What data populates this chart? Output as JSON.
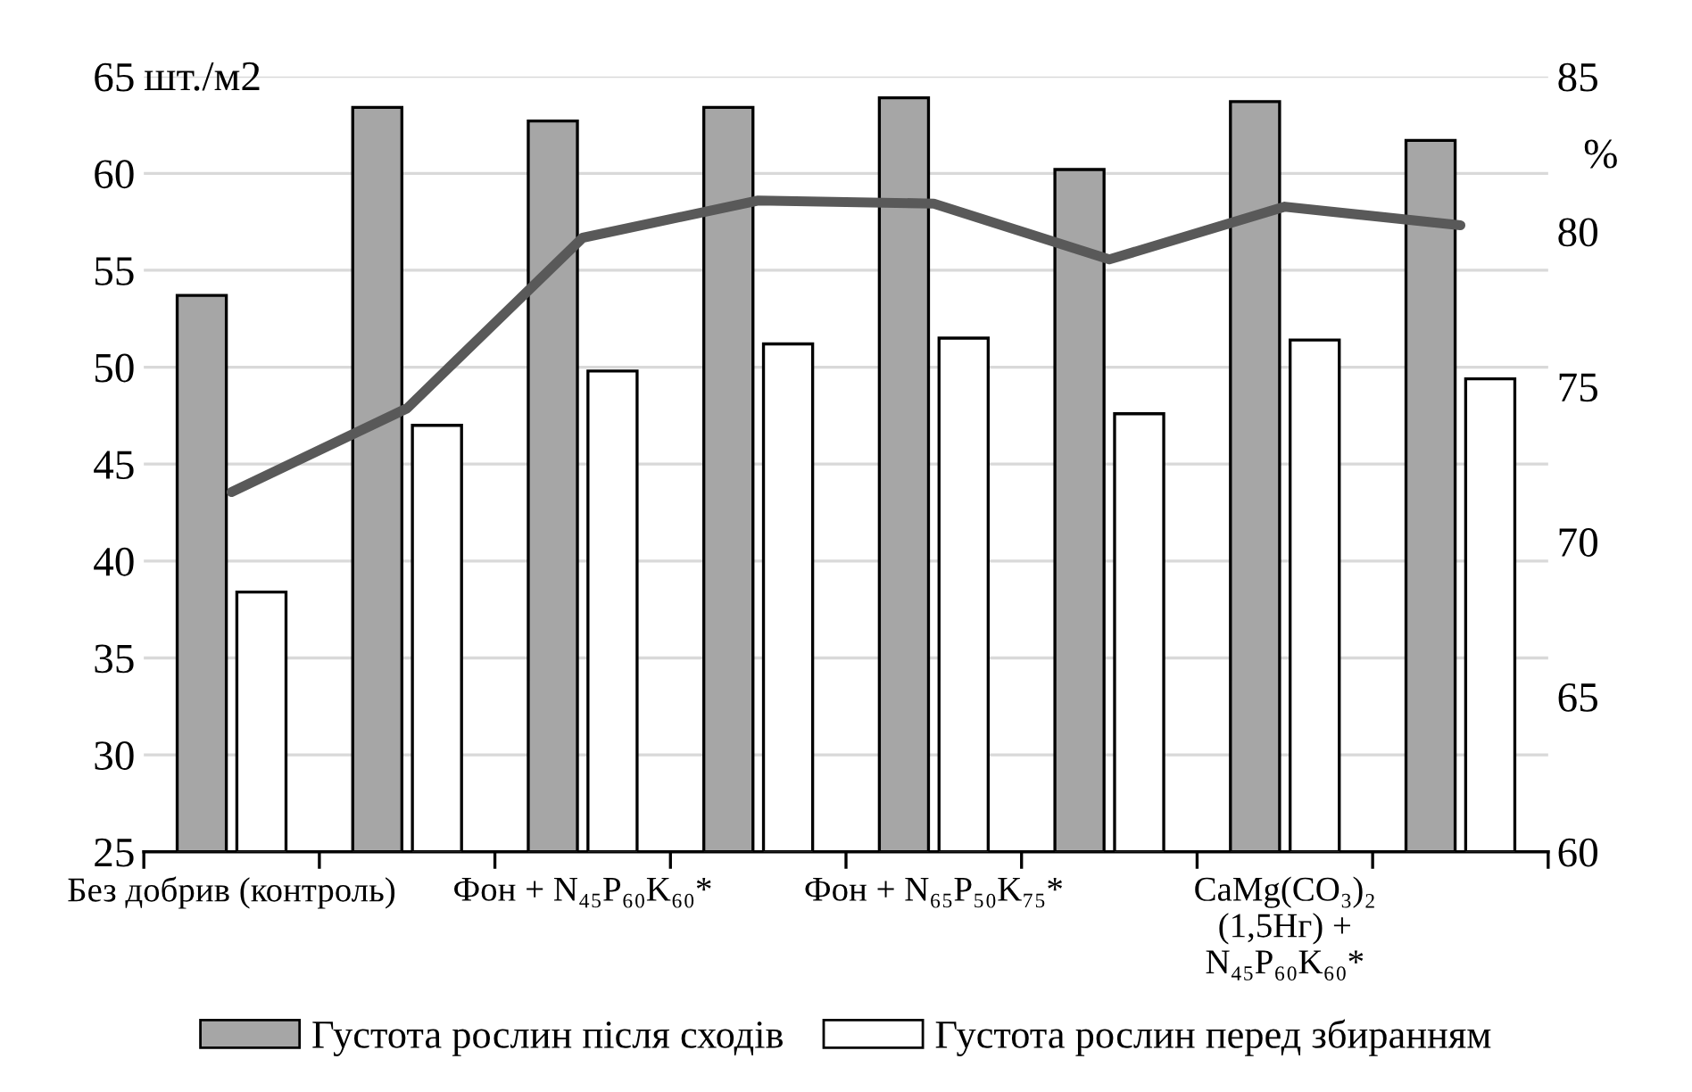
{
  "chart_data": {
    "type": "bar",
    "categories": [
      "Без добрив (контроль)",
      null,
      "Фон + N₄₅P₆₀K₆₀*",
      null,
      "Фон + N₆₅P₅₀K₇₅*",
      null,
      "CaMg(CO₃)₂\n(1,5Нг) +\nN₄₅P₆₀K₆₀*",
      null
    ],
    "ylabel": "шт./м2",
    "y2label": "%",
    "ylim": [
      25,
      65
    ],
    "yticks": [
      25,
      30,
      35,
      40,
      45,
      50,
      55,
      60,
      65
    ],
    "y2lim": [
      60,
      85
    ],
    "y2ticks": [
      60,
      65,
      70,
      75,
      80,
      85
    ],
    "series": [
      {
        "name": "Густота рослин після сходів",
        "color": "#a6a6a6",
        "values": [
          53.7,
          63.4,
          62.7,
          63.4,
          63.9,
          60.2,
          63.7,
          61.7
        ]
      },
      {
        "name": "Густота рослин перед збиранням",
        "color": "#ffffff",
        "values": [
          38.4,
          47.0,
          49.8,
          51.2,
          51.5,
          47.6,
          51.4,
          49.4
        ]
      },
      {
        "type": "line",
        "axis": "y2",
        "color": "#595959",
        "values": [
          71.6,
          74.3,
          79.8,
          81.0,
          80.9,
          79.1,
          80.8,
          80.2
        ]
      }
    ],
    "grid": "y",
    "legend": "bottom",
    "marker": "none",
    "line_style": "solid"
  }
}
